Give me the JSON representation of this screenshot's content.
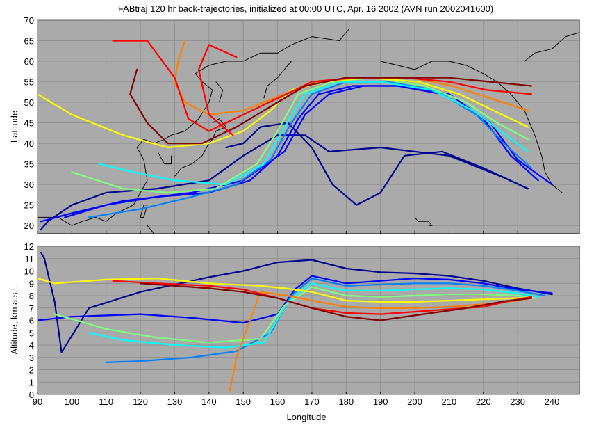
{
  "chart_data": [
    {
      "type": "line",
      "title": "FABtraj 120 hr back-trajectories, initialized at 00:00 UTC, Apr. 16 2002 (AVN run 2002041600)",
      "xlabel": "",
      "ylabel": "Latitude",
      "xlim": [
        90,
        248
      ],
      "ylim": [
        18,
        70
      ],
      "xticks": [],
      "yticks": [
        "20",
        "25",
        "30",
        "35",
        "40",
        "45",
        "50",
        "55",
        "60",
        "65",
        "70"
      ],
      "grid": true,
      "background": "#aaaaaa",
      "coastline_color": "#000000",
      "colormap": [
        "#00008f",
        "#0000ff",
        "#0080ff",
        "#00ffff",
        "#80ff80",
        "#ffff00",
        "#ff8000",
        "#ff0000",
        "#800000"
      ],
      "series": [
        {
          "color": "#00008f",
          "x": [
            233,
            225,
            210,
            190,
            175,
            168,
            160,
            150,
            140,
            125,
            110,
            100,
            93,
            91
          ],
          "y": [
            29,
            32,
            37,
            39,
            38,
            42,
            42,
            37,
            31,
            29,
            28,
            25,
            21,
            19
          ]
        },
        {
          "color": "#00008f",
          "x": [
            233,
            220,
            208,
            197,
            190,
            183,
            176,
            170,
            163,
            155,
            150,
            145
          ],
          "y": [
            29,
            34,
            38,
            37,
            28,
            25,
            30,
            39,
            45,
            44,
            40,
            39
          ]
        },
        {
          "color": "#0000ff",
          "x": [
            240,
            230,
            222,
            210,
            198,
            185,
            175,
            168,
            162,
            150,
            135,
            115,
            100,
            91
          ],
          "y": [
            30,
            36,
            45,
            52,
            54,
            54,
            52,
            47,
            38,
            31,
            28,
            26,
            23,
            21
          ]
        },
        {
          "color": "#0000ff",
          "x": [
            236,
            228,
            220,
            208,
            195,
            182,
            172,
            166,
            160,
            152,
            140,
            125,
            110,
            98
          ],
          "y": [
            31,
            37,
            46,
            52,
            54,
            54,
            52,
            46,
            37,
            31,
            28,
            27,
            25,
            22
          ]
        },
        {
          "color": "#0080ff",
          "x": [
            234,
            226,
            218,
            206,
            192,
            180,
            170,
            164,
            158,
            148,
            135,
            120,
            105
          ],
          "y": [
            34,
            40,
            47,
            53,
            55,
            55,
            52,
            45,
            36,
            30,
            27,
            24,
            22
          ]
        },
        {
          "color": "#00ffff",
          "x": [
            233,
            225,
            217,
            205,
            190,
            178,
            168,
            162,
            156,
            145,
            130,
            118,
            108
          ],
          "y": [
            38,
            43,
            48,
            53,
            55,
            55,
            52,
            44,
            35,
            30,
            31,
            33,
            35
          ]
        },
        {
          "color": "#80ff80",
          "x": [
            233,
            224,
            215,
            203,
            188,
            176,
            166,
            160,
            154,
            142,
            128,
            115,
            100
          ],
          "y": [
            41,
            45,
            50,
            54,
            56,
            55,
            52,
            43,
            35,
            29,
            28,
            29,
            33
          ]
        },
        {
          "color": "#ffff00",
          "x": [
            233,
            223,
            213,
            201,
            186,
            174,
            164,
            158,
            150,
            140,
            128,
            115,
            100,
            90
          ],
          "y": [
            44,
            48,
            52,
            55,
            56,
            55,
            53,
            48,
            43,
            40,
            39,
            42,
            47,
            52
          ]
        },
        {
          "color": "#ff8000",
          "x": [
            233,
            222,
            211,
            199,
            184,
            172,
            162,
            150,
            140,
            133,
            130,
            131,
            133
          ],
          "y": [
            48,
            51,
            54,
            56,
            56,
            55,
            52,
            48,
            47,
            50,
            55,
            60,
            65
          ]
        },
        {
          "color": "#ff0000",
          "x": [
            234,
            221,
            210,
            197,
            182,
            170,
            160,
            150,
            140,
            134,
            130,
            122,
            112
          ],
          "y": [
            52,
            53,
            55,
            56,
            56,
            55,
            51,
            47,
            43,
            46,
            56,
            65,
            65
          ]
        },
        {
          "color": "#800000",
          "x": [
            234,
            222,
            210,
            196,
            180,
            168,
            158,
            148,
            138,
            128,
            122,
            117,
            119
          ],
          "y": [
            54,
            55,
            56,
            56,
            56,
            54,
            49,
            44,
            40,
            40,
            45,
            52,
            58
          ]
        },
        {
          "color": "#ff0000",
          "x": [
            147,
            140,
            137,
            140,
            148
          ],
          "y": [
            42,
            47,
            58,
            64,
            61
          ]
        }
      ]
    },
    {
      "type": "line",
      "title": "",
      "xlabel": "Longitude",
      "ylabel": "Altitude, km a.s.l.",
      "xlim": [
        90,
        248
      ],
      "ylim": [
        0,
        12
      ],
      "xticks": [
        "90",
        "100",
        "110",
        "120",
        "130",
        "140",
        "150",
        "160",
        "170",
        "180",
        "190",
        "200",
        "210",
        "220",
        "230",
        "240"
      ],
      "yticks": [
        "0",
        "1",
        "2",
        "3",
        "4",
        "5",
        "6",
        "7",
        "8",
        "9",
        "10",
        "11",
        "12"
      ],
      "grid": true,
      "background": "#aaaaaa",
      "series": [
        {
          "color": "#00008f",
          "x": [
            240,
            230,
            220,
            210,
            200,
            190,
            180,
            170,
            160,
            150,
            140,
            120,
            105,
            97,
            95,
            92,
            91
          ],
          "y": [
            8.1,
            8.6,
            9.2,
            9.6,
            9.8,
            9.9,
            10.2,
            10.9,
            10.7,
            10.0,
            9.5,
            8.3,
            7.0,
            3.4,
            7.5,
            11.0,
            11.5
          ]
        },
        {
          "color": "#0000ff",
          "x": [
            240,
            230,
            220,
            210,
            200,
            190,
            180,
            170,
            165,
            160,
            150,
            135,
            120,
            100,
            90
          ],
          "y": [
            8.2,
            8.5,
            9.0,
            9.3,
            9.4,
            9.2,
            9.0,
            9.6,
            8.5,
            6.5,
            5.8,
            6.2,
            6.5,
            6.3,
            6.0
          ]
        },
        {
          "color": "#0080ff",
          "x": [
            238,
            230,
            220,
            210,
            200,
            190,
            180,
            170,
            164,
            158,
            148,
            135,
            120,
            110
          ],
          "y": [
            8.0,
            8.4,
            8.8,
            9.0,
            9.0,
            8.9,
            8.8,
            9.4,
            8.0,
            5.0,
            3.5,
            3.0,
            2.7,
            2.6
          ]
        },
        {
          "color": "#00ffff",
          "x": [
            236,
            230,
            220,
            210,
            200,
            190,
            180,
            170,
            163,
            156,
            145,
            130,
            115,
            105
          ],
          "y": [
            7.9,
            8.2,
            8.5,
            8.6,
            8.5,
            8.4,
            8.4,
            9.0,
            7.5,
            4.2,
            3.8,
            4.0,
            4.4,
            5.0
          ]
        },
        {
          "color": "#80ff80",
          "x": [
            235,
            230,
            220,
            210,
            200,
            190,
            180,
            170,
            162,
            155,
            140,
            125,
            110,
            95
          ],
          "y": [
            7.8,
            8.0,
            8.1,
            8.1,
            8.0,
            7.9,
            8.0,
            8.7,
            7.2,
            4.5,
            4.2,
            4.6,
            5.3,
            6.5
          ]
        },
        {
          "color": "#ffff00",
          "x": [
            234,
            230,
            220,
            210,
            200,
            190,
            180,
            170,
            162,
            155,
            140,
            125,
            110,
            95,
            90
          ],
          "y": [
            7.8,
            7.8,
            7.7,
            7.6,
            7.5,
            7.5,
            7.6,
            8.3,
            8.6,
            8.8,
            9.0,
            9.4,
            9.3,
            9.0,
            9.4
          ]
        },
        {
          "color": "#ff8000",
          "x": [
            234,
            230,
            220,
            210,
            200,
            190,
            180,
            170,
            163,
            155,
            148,
            147,
            146
          ],
          "y": [
            7.8,
            7.6,
            7.3,
            7.1,
            7.0,
            7.0,
            7.1,
            7.6,
            8.0,
            8.3,
            3.0,
            1.5,
            0.3
          ]
        },
        {
          "color": "#ff0000",
          "x": [
            234,
            228,
            220,
            210,
            200,
            190,
            180,
            170,
            160,
            150,
            140,
            125,
            112
          ],
          "y": [
            7.9,
            7.6,
            7.1,
            6.9,
            6.7,
            6.5,
            6.6,
            7.0,
            7.8,
            8.5,
            8.8,
            9.0,
            9.2
          ]
        },
        {
          "color": "#800000",
          "x": [
            234,
            225,
            215,
            205,
            195,
            190,
            180,
            170,
            160,
            150,
            140,
            130,
            120
          ],
          "y": [
            7.8,
            7.5,
            7.0,
            6.6,
            6.2,
            6.0,
            6.3,
            7.0,
            7.8,
            8.3,
            8.6,
            8.8,
            9.0
          ]
        }
      ]
    }
  ]
}
